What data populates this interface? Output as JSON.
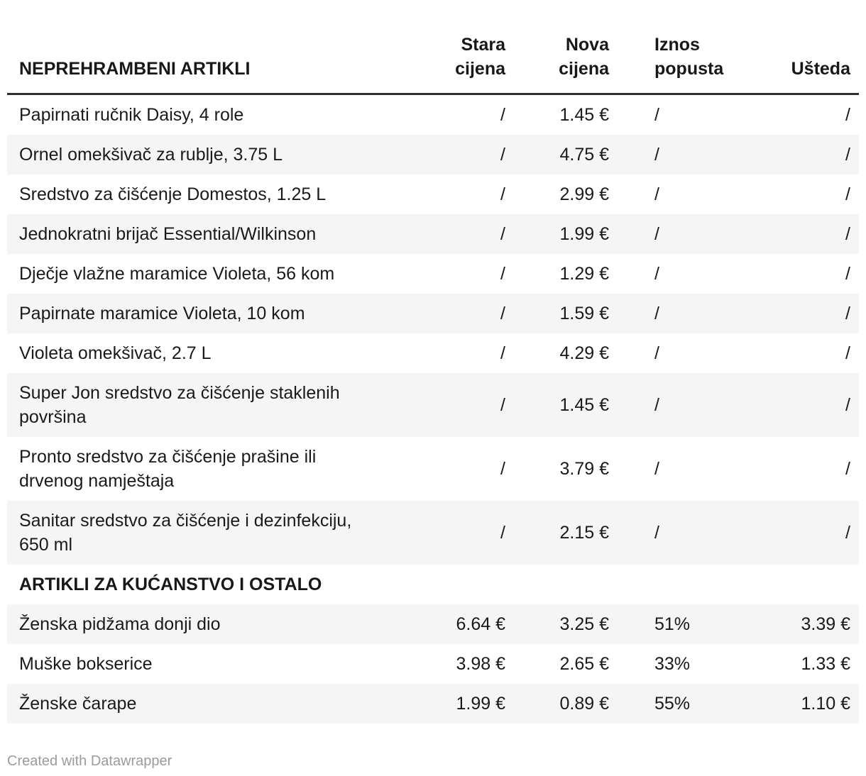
{
  "chart_data": {
    "type": "table",
    "title": "NEPREHRAMBENI ARTIKLI",
    "columns": [
      "NEPREHRAMBENI ARTIKLI",
      "Stara cijena",
      "Nova cijena",
      "Iznos popusta",
      "Ušteda"
    ],
    "sections": [
      {
        "header": "NEPREHRAMBENI ARTIKLI",
        "rows": [
          [
            "Papirnati ručnik Daisy, 4 role",
            "/",
            "1.45 €",
            "/",
            "/"
          ],
          [
            "Ornel omekšivač za rublje, 3.75 L",
            "/",
            "4.75 €",
            "/",
            "/"
          ],
          [
            "Sredstvo za čišćenje Domestos, 1.25 L",
            "/",
            "2.99 €",
            "/",
            "/"
          ],
          [
            "Jednokratni brijač Essential/Wilkinson",
            "/",
            "1.99 €",
            "/",
            "/"
          ],
          [
            "Dječje vlažne maramice Violeta, 56 kom",
            "/",
            "1.29 €",
            "/",
            "/"
          ],
          [
            "Papirnate maramice Violeta, 10 kom",
            "/",
            "1.59 €",
            "/",
            "/"
          ],
          [
            "Violeta omekšivač, 2.7 L",
            "/",
            "4.29 €",
            "/",
            "/"
          ],
          [
            "Super Jon sredstvo za čišćenje staklenih površina",
            "/",
            "1.45 €",
            "/",
            "/"
          ],
          [
            "Pronto sredstvo za čišćenje prašine ili drvenog namještaja",
            "/",
            "3.79 €",
            "/",
            "/"
          ],
          [
            "Sanitar sredstvo za čišćenje i dezinfekciju, 650 ml",
            "/",
            "2.15 €",
            "/",
            "/"
          ]
        ]
      },
      {
        "header": "ARTIKLI ZA KUĆANSTVO I OSTALO",
        "rows": [
          [
            "Ženska pidžama donji dio",
            "6.64 €",
            "3.25 €",
            "51%",
            "3.39 €"
          ],
          [
            "Muške bokserice",
            "3.98 €",
            "2.65 €",
            "33%",
            "1.33 €"
          ],
          [
            "Ženske čarape",
            "1.99 €",
            "0.89 €",
            "55%",
            "1.10 €"
          ]
        ]
      }
    ],
    "layout_hints": {
      "zebra_striping": true,
      "grid": false,
      "column_alignment": [
        "left",
        "right",
        "right",
        "left",
        "right"
      ]
    }
  },
  "footer": {
    "credit": "Created with Datawrapper"
  },
  "colors": {
    "text": "#1a1a1a",
    "header_rule": "#2f2f2f",
    "row_stripe": "#f5f5f5",
    "credit_text": "#9b9b9b",
    "background": "#ffffff"
  }
}
